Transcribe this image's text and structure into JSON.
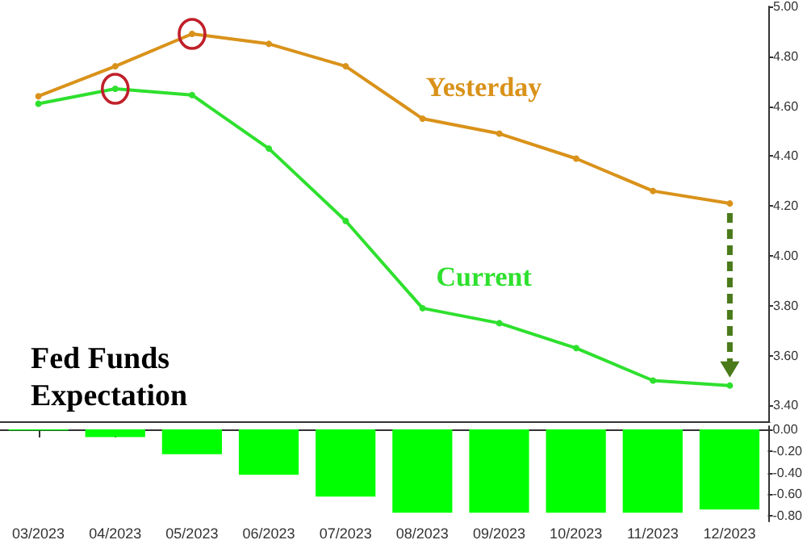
{
  "chart_data": [
    {
      "type": "line",
      "title": "Fed Funds Expectation",
      "categories": [
        null,
        null,
        null,
        null,
        null,
        null,
        null,
        null,
        null,
        null
      ],
      "series": [
        {
          "name": "Yesterday",
          "color": "#d9921a",
          "values": [
            4.64,
            4.76,
            4.89,
            4.85,
            4.76,
            4.55,
            4.49,
            4.39,
            4.26,
            4.21
          ]
        },
        {
          "name": "Current",
          "color": "#2ee02e",
          "values": [
            4.61,
            4.67,
            4.645,
            4.43,
            4.14,
            3.79,
            3.73,
            3.63,
            3.5,
            3.48
          ]
        }
      ],
      "ylim": [
        3.33,
        5.0
      ],
      "yticks": [
        {
          "value": 3.4,
          "label": "3.40"
        },
        {
          "value": 3.6,
          "label": "3.60"
        },
        {
          "value": 3.8,
          "label": "3.80"
        },
        {
          "value": 4.0,
          "label": "4.00"
        },
        {
          "value": 4.2,
          "label": "4.20"
        },
        {
          "value": 4.4,
          "label": "4.40"
        },
        {
          "value": 4.6,
          "label": "4.60"
        },
        {
          "value": 4.8,
          "label": "4.80"
        },
        {
          "value": 5.0,
          "label": "5.00"
        }
      ],
      "tick_labels": "y",
      "grid": false,
      "legend": false,
      "marker": "circle",
      "line_style": "solid"
    },
    {
      "type": "bar",
      "categories": [
        "03/2023",
        "04/2023",
        "05/2023",
        "06/2023",
        "07/2023",
        "08/2023",
        "09/2023",
        "10/2023",
        "11/2023",
        "12/2023"
      ],
      "values": [
        -0.01,
        -0.07,
        -0.23,
        -0.42,
        -0.62,
        -0.77,
        -0.77,
        -0.77,
        -0.77,
        -0.74
      ],
      "color": "#00ff00",
      "ylim": [
        -0.85,
        0.03
      ],
      "yticks": [
        {
          "value": -0.8,
          "label": "-0.80"
        },
        {
          "value": -0.6,
          "label": "-0.60"
        },
        {
          "value": -0.4,
          "label": "-0.40"
        },
        {
          "value": -0.2,
          "label": "-0.20"
        },
        {
          "value": 0,
          "label": "0.00"
        }
      ],
      "grid": false,
      "legend": false
    }
  ]
}
